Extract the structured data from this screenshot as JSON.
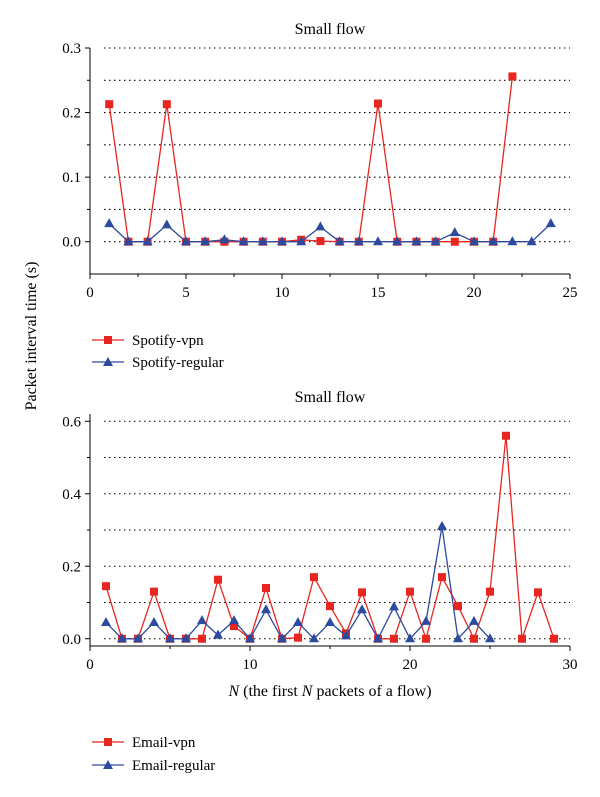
{
  "shared_ylabel": "Packet interval time (s)",
  "colors": {
    "vpn": "#e8261f",
    "regular": "#2d4b9e",
    "grid": "#000000"
  },
  "chart_data": [
    {
      "type": "line",
      "title": "Small flow",
      "xlabel": "",
      "xlim": [
        0,
        25
      ],
      "ylim": [
        -0.05,
        0.3
      ],
      "xticks": [
        0,
        5,
        10,
        15,
        20,
        25
      ],
      "yticks": [
        0.0,
        0.1,
        0.2,
        0.3
      ],
      "ytick_labels": [
        "0.0",
        "0.1",
        "0.2",
        "0.3"
      ],
      "grid": "dotted horizontal",
      "legend_position": "below",
      "series": [
        {
          "name": "Spotify-vpn",
          "marker": "square",
          "x": [
            1,
            2,
            3,
            4,
            5,
            6,
            7,
            8,
            9,
            10,
            11,
            12,
            13,
            14,
            15,
            16,
            17,
            18,
            19,
            20,
            21,
            22
          ],
          "y": [
            0.213,
            0.0,
            0.0,
            0.213,
            0.0,
            0.0,
            0.0,
            0.0,
            0.0,
            0.0,
            0.003,
            0.001,
            0.0,
            0.0,
            0.214,
            0.0,
            0.0,
            0.0,
            0.0,
            0.0,
            0.0,
            0.256
          ]
        },
        {
          "name": "Spotify-regular",
          "marker": "triangle",
          "x": [
            1,
            2,
            3,
            4,
            5,
            6,
            7,
            8,
            9,
            10,
            11,
            12,
            13,
            14,
            15,
            16,
            17,
            18,
            19,
            20,
            21,
            22,
            23,
            24
          ],
          "y": [
            0.028,
            0.0,
            0.0,
            0.026,
            0.0,
            0.0,
            0.003,
            0.0,
            0.0,
            0.0,
            0.0,
            0.023,
            0.0,
            0.0,
            0.0,
            0.0,
            0.0,
            0.0,
            0.014,
            0.0,
            0.0,
            0.0,
            0.0,
            0.028
          ]
        }
      ]
    },
    {
      "type": "line",
      "title": "Small flow",
      "xlabel_pre": "N",
      "xlabel_mid": " (the first ",
      "xlabel_n2": "N",
      "xlabel_post": " packets of a flow)",
      "xlim": [
        0,
        30
      ],
      "ylim": [
        -0.02,
        0.62
      ],
      "xticks": [
        0,
        10,
        20,
        30
      ],
      "yticks": [
        0.0,
        0.2,
        0.4,
        0.6
      ],
      "ytick_labels": [
        "0.0",
        "0.2",
        "0.4",
        "0.6"
      ],
      "grid": "dotted horizontal",
      "legend_position": "below",
      "series": [
        {
          "name": "Email-vpn",
          "marker": "square",
          "x": [
            1,
            2,
            3,
            4,
            5,
            6,
            7,
            8,
            9,
            10,
            11,
            12,
            13,
            14,
            15,
            16,
            17,
            18,
            19,
            20,
            21,
            22,
            23,
            24,
            25,
            26,
            27,
            28,
            29
          ],
          "y": [
            0.145,
            0.0,
            0.0,
            0.13,
            0.0,
            0.0,
            0.0,
            0.163,
            0.035,
            0.0,
            0.14,
            0.0,
            0.003,
            0.17,
            0.09,
            0.015,
            0.128,
            0.0,
            0.0,
            0.13,
            0.0,
            0.17,
            0.09,
            0.0,
            0.13,
            0.56,
            0.0,
            0.128,
            0.0
          ]
        },
        {
          "name": "Email-regular",
          "marker": "triangle",
          "x": [
            1,
            2,
            3,
            4,
            5,
            6,
            7,
            8,
            9,
            10,
            11,
            12,
            13,
            14,
            15,
            16,
            17,
            18,
            19,
            20,
            21,
            22,
            23,
            24,
            25
          ],
          "y": [
            0.045,
            0.0,
            0.0,
            0.045,
            0.0,
            0.0,
            0.05,
            0.01,
            0.05,
            0.0,
            0.08,
            0.0,
            0.045,
            0.0,
            0.045,
            0.008,
            0.08,
            0.0,
            0.088,
            0.0,
            0.048,
            0.31,
            0.0,
            0.048,
            0.0
          ]
        }
      ]
    }
  ]
}
